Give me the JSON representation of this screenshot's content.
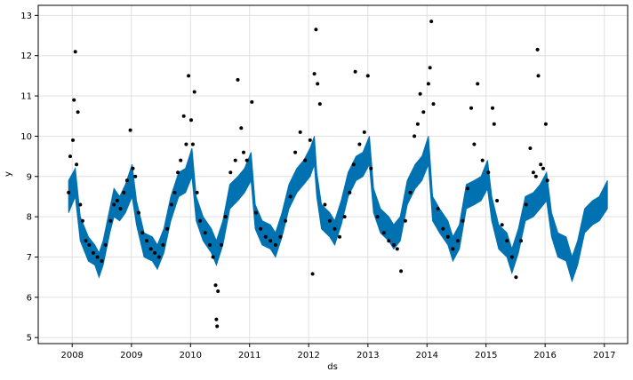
{
  "chart_data": {
    "type": "scatter",
    "title": "",
    "xlabel": "ds",
    "ylabel": "y",
    "xlim": [
      "2007-06-05",
      "2017-05-25"
    ],
    "ylim": [
      4.85,
      13.25
    ],
    "grid": true,
    "x_ticks": [
      {
        "date": "2008-01-01",
        "label": "2008"
      },
      {
        "date": "2009-01-01",
        "label": "2009"
      },
      {
        "date": "2010-01-01",
        "label": "2010"
      },
      {
        "date": "2011-01-01",
        "label": "2011"
      },
      {
        "date": "2012-01-01",
        "label": "2012"
      },
      {
        "date": "2013-01-01",
        "label": "2013"
      },
      {
        "date": "2014-01-01",
        "label": "2014"
      },
      {
        "date": "2015-01-01",
        "label": "2015"
      },
      {
        "date": "2016-01-01",
        "label": "2016"
      },
      {
        "date": "2017-01-01",
        "label": "2017"
      }
    ],
    "y_ticks": [
      5,
      6,
      7,
      8,
      9,
      10,
      11,
      12,
      13
    ],
    "colors": {
      "observed": "#000000",
      "forecast": "#0072B2",
      "grid": "#e0e0e0"
    },
    "series": [
      {
        "role": "observed",
        "points": [
          [
            "2007-12-10",
            8.6
          ],
          [
            "2007-12-20",
            9.5
          ],
          [
            "2008-01-05",
            9.9
          ],
          [
            "2008-01-12",
            10.9
          ],
          [
            "2008-01-20",
            12.1
          ],
          [
            "2008-01-28",
            9.3
          ],
          [
            "2008-02-05",
            10.6
          ],
          [
            "2008-02-20",
            8.3
          ],
          [
            "2008-03-05",
            7.9
          ],
          [
            "2008-03-25",
            7.4
          ],
          [
            "2008-04-15",
            7.3
          ],
          [
            "2008-05-10",
            7.1
          ],
          [
            "2008-06-05",
            7.0
          ],
          [
            "2008-07-01",
            6.9
          ],
          [
            "2008-07-25",
            7.3
          ],
          [
            "2008-08-25",
            7.9
          ],
          [
            "2008-09-15",
            8.3
          ],
          [
            "2008-10-05",
            8.4
          ],
          [
            "2008-10-25",
            8.2
          ],
          [
            "2008-11-15",
            8.6
          ],
          [
            "2008-12-05",
            8.9
          ],
          [
            "2008-12-25",
            10.15
          ],
          [
            "2009-01-10",
            9.2
          ],
          [
            "2009-01-25",
            9.0
          ],
          [
            "2009-02-15",
            8.1
          ],
          [
            "2009-03-10",
            7.6
          ],
          [
            "2009-04-05",
            7.4
          ],
          [
            "2009-05-01",
            7.2
          ],
          [
            "2009-05-25",
            7.1
          ],
          [
            "2009-06-20",
            7.0
          ],
          [
            "2009-07-15",
            7.3
          ],
          [
            "2009-08-10",
            7.7
          ],
          [
            "2009-09-05",
            8.3
          ],
          [
            "2009-09-25",
            8.6
          ],
          [
            "2009-10-15",
            9.1
          ],
          [
            "2009-11-01",
            9.4
          ],
          [
            "2009-11-20",
            10.5
          ],
          [
            "2009-12-05",
            9.8
          ],
          [
            "2009-12-20",
            11.5
          ],
          [
            "2010-01-05",
            10.4
          ],
          [
            "2010-01-15",
            9.8
          ],
          [
            "2010-01-25",
            11.1
          ],
          [
            "2010-02-10",
            8.6
          ],
          [
            "2010-03-01",
            7.9
          ],
          [
            "2010-04-01",
            7.6
          ],
          [
            "2010-05-01",
            7.3
          ],
          [
            "2010-05-20",
            7.0
          ],
          [
            "2010-06-05",
            6.3
          ],
          [
            "2010-06-10",
            5.45
          ],
          [
            "2010-06-14",
            5.28
          ],
          [
            "2010-06-20",
            6.15
          ],
          [
            "2010-07-10",
            7.3
          ],
          [
            "2010-08-05",
            8.0
          ],
          [
            "2010-09-05",
            9.1
          ],
          [
            "2010-10-05",
            9.4
          ],
          [
            "2010-10-20",
            11.4
          ],
          [
            "2010-11-10",
            10.2
          ],
          [
            "2010-11-25",
            9.6
          ],
          [
            "2010-12-15",
            9.4
          ],
          [
            "2011-01-15",
            10.85
          ],
          [
            "2011-02-10",
            8.1
          ],
          [
            "2011-03-10",
            7.7
          ],
          [
            "2011-04-10",
            7.5
          ],
          [
            "2011-05-10",
            7.4
          ],
          [
            "2011-06-10",
            7.3
          ],
          [
            "2011-07-10",
            7.5
          ],
          [
            "2011-08-10",
            7.9
          ],
          [
            "2011-09-10",
            8.5
          ],
          [
            "2011-10-10",
            9.6
          ],
          [
            "2011-11-10",
            10.1
          ],
          [
            "2011-12-10",
            9.4
          ],
          [
            "2012-01-10",
            9.9
          ],
          [
            "2012-01-25",
            6.58
          ],
          [
            "2012-02-05",
            11.55
          ],
          [
            "2012-02-15",
            12.65
          ],
          [
            "2012-02-25",
            11.3
          ],
          [
            "2012-03-10",
            10.8
          ],
          [
            "2012-04-10",
            8.3
          ],
          [
            "2012-05-10",
            7.9
          ],
          [
            "2012-06-10",
            7.7
          ],
          [
            "2012-07-10",
            7.5
          ],
          [
            "2012-08-10",
            8.0
          ],
          [
            "2012-09-10",
            8.6
          ],
          [
            "2012-10-05",
            9.3
          ],
          [
            "2012-10-15",
            11.6
          ],
          [
            "2012-11-10",
            9.8
          ],
          [
            "2012-12-10",
            10.1
          ],
          [
            "2013-01-01",
            11.5
          ],
          [
            "2013-01-20",
            9.2
          ],
          [
            "2013-03-01",
            8.0
          ],
          [
            "2013-04-10",
            7.6
          ],
          [
            "2013-05-10",
            7.4
          ],
          [
            "2013-06-10",
            7.3
          ],
          [
            "2013-07-01",
            7.2
          ],
          [
            "2013-07-25",
            6.65
          ],
          [
            "2013-08-20",
            7.9
          ],
          [
            "2013-09-20",
            8.6
          ],
          [
            "2013-10-15",
            10.0
          ],
          [
            "2013-11-05",
            10.3
          ],
          [
            "2013-11-20",
            11.05
          ],
          [
            "2013-12-10",
            10.6
          ],
          [
            "2014-01-10",
            11.3
          ],
          [
            "2014-01-20",
            11.7
          ],
          [
            "2014-01-28",
            12.85
          ],
          [
            "2014-02-10",
            10.8
          ],
          [
            "2014-03-10",
            8.2
          ],
          [
            "2014-04-10",
            7.7
          ],
          [
            "2014-05-10",
            7.5
          ],
          [
            "2014-06-10",
            7.2
          ],
          [
            "2014-07-10",
            7.4
          ],
          [
            "2014-08-10",
            7.9
          ],
          [
            "2014-09-10",
            8.7
          ],
          [
            "2014-10-01",
            10.7
          ],
          [
            "2014-10-20",
            9.8
          ],
          [
            "2014-11-10",
            11.3
          ],
          [
            "2014-12-10",
            9.4
          ],
          [
            "2015-01-15",
            9.1
          ],
          [
            "2015-02-10",
            10.7
          ],
          [
            "2015-02-20",
            10.3
          ],
          [
            "2015-03-10",
            8.4
          ],
          [
            "2015-04-10",
            7.8
          ],
          [
            "2015-05-10",
            7.4
          ],
          [
            "2015-06-10",
            7.0
          ],
          [
            "2015-07-05",
            6.5
          ],
          [
            "2015-08-05",
            7.4
          ],
          [
            "2015-09-05",
            8.3
          ],
          [
            "2015-10-01",
            9.7
          ],
          [
            "2015-10-20",
            9.1
          ],
          [
            "2015-11-05",
            9.0
          ],
          [
            "2015-11-15",
            12.15
          ],
          [
            "2015-11-20",
            11.5
          ],
          [
            "2015-12-05",
            9.3
          ],
          [
            "2015-12-20",
            9.2
          ],
          [
            "2016-01-05",
            10.3
          ],
          [
            "2016-01-15",
            8.9
          ]
        ]
      },
      {
        "role": "forecast",
        "type": "band",
        "points": [
          [
            "2007-12-10",
            8.1,
            8.9
          ],
          [
            "2008-01-20",
            8.5,
            9.2
          ],
          [
            "2008-02-20",
            7.4,
            8.0
          ],
          [
            "2008-04-10",
            6.9,
            7.5
          ],
          [
            "2008-05-20",
            6.8,
            7.3
          ],
          [
            "2008-06-15",
            6.5,
            7.1
          ],
          [
            "2008-07-10",
            6.8,
            7.4
          ],
          [
            "2008-08-20",
            7.6,
            8.2
          ],
          [
            "2008-09-15",
            8.0,
            8.7
          ],
          [
            "2008-10-20",
            7.9,
            8.5
          ],
          [
            "2008-11-25",
            8.1,
            8.8
          ],
          [
            "2009-01-05",
            8.5,
            9.3
          ],
          [
            "2009-02-01",
            7.8,
            8.4
          ],
          [
            "2009-03-20",
            7.0,
            7.6
          ],
          [
            "2009-05-10",
            6.9,
            7.5
          ],
          [
            "2009-06-10",
            6.7,
            7.3
          ],
          [
            "2009-07-20",
            7.1,
            7.7
          ],
          [
            "2009-09-01",
            7.9,
            8.5
          ],
          [
            "2009-10-20",
            8.5,
            9.1
          ],
          [
            "2009-12-01",
            8.6,
            9.2
          ],
          [
            "2010-01-10",
            9.0,
            9.7
          ],
          [
            "2010-02-05",
            7.9,
            8.5
          ],
          [
            "2010-03-20",
            7.4,
            8.0
          ],
          [
            "2010-05-10",
            7.1,
            7.7
          ],
          [
            "2010-06-10",
            6.8,
            7.4
          ],
          [
            "2010-07-20",
            7.3,
            7.9
          ],
          [
            "2010-09-01",
            8.2,
            8.8
          ],
          [
            "2010-10-20",
            8.4,
            9.0
          ],
          [
            "2010-12-01",
            8.6,
            9.2
          ],
          [
            "2011-01-10",
            8.9,
            9.6
          ],
          [
            "2011-02-05",
            7.7,
            8.3
          ],
          [
            "2011-03-20",
            7.3,
            7.9
          ],
          [
            "2011-05-10",
            7.2,
            7.8
          ],
          [
            "2011-06-10",
            7.0,
            7.6
          ],
          [
            "2011-07-20",
            7.5,
            8.1
          ],
          [
            "2011-09-01",
            8.2,
            8.8
          ],
          [
            "2011-10-20",
            8.6,
            9.2
          ],
          [
            "2011-12-01",
            8.8,
            9.4
          ],
          [
            "2012-01-10",
            9.0,
            9.7
          ],
          [
            "2012-02-05",
            9.3,
            10.0
          ],
          [
            "2012-02-20",
            8.5,
            9.1
          ],
          [
            "2012-03-20",
            7.7,
            8.3
          ],
          [
            "2012-05-10",
            7.5,
            8.1
          ],
          [
            "2012-06-10",
            7.3,
            7.9
          ],
          [
            "2012-07-20",
            7.8,
            8.4
          ],
          [
            "2012-09-01",
            8.5,
            9.1
          ],
          [
            "2012-10-20",
            8.9,
            9.5
          ],
          [
            "2012-12-01",
            9.0,
            9.6
          ],
          [
            "2013-01-10",
            9.3,
            10.0
          ],
          [
            "2013-02-05",
            8.1,
            8.7
          ],
          [
            "2013-03-20",
            7.6,
            8.2
          ],
          [
            "2013-05-10",
            7.4,
            8.0
          ],
          [
            "2013-06-10",
            7.2,
            7.8
          ],
          [
            "2013-07-20",
            7.4,
            8.0
          ],
          [
            "2013-09-01",
            8.3,
            8.9
          ],
          [
            "2013-10-20",
            8.7,
            9.3
          ],
          [
            "2013-12-01",
            8.9,
            9.5
          ],
          [
            "2014-01-10",
            9.3,
            10.0
          ],
          [
            "2014-02-05",
            7.9,
            8.5
          ],
          [
            "2014-03-20",
            7.6,
            8.2
          ],
          [
            "2014-05-10",
            7.3,
            7.9
          ],
          [
            "2014-06-10",
            6.9,
            7.5
          ],
          [
            "2014-07-20",
            7.2,
            7.8
          ],
          [
            "2014-09-01",
            8.2,
            8.8
          ],
          [
            "2014-10-20",
            8.3,
            8.9
          ],
          [
            "2014-12-01",
            8.4,
            9.0
          ],
          [
            "2015-01-10",
            8.7,
            9.4
          ],
          [
            "2015-02-05",
            7.9,
            8.5
          ],
          [
            "2015-03-20",
            7.2,
            7.8
          ],
          [
            "2015-05-10",
            7.0,
            7.6
          ],
          [
            "2015-06-10",
            6.6,
            7.2
          ],
          [
            "2015-07-20",
            7.1,
            7.7
          ],
          [
            "2015-09-01",
            7.9,
            8.5
          ],
          [
            "2015-10-20",
            8.0,
            8.6
          ],
          [
            "2015-12-01",
            8.2,
            8.8
          ],
          [
            "2016-01-10",
            8.4,
            9.1
          ],
          [
            "2016-02-10",
            7.5,
            8.1
          ],
          [
            "2016-03-20",
            7.0,
            7.6
          ],
          [
            "2016-05-10",
            6.9,
            7.5
          ],
          [
            "2016-06-15",
            6.4,
            7.0
          ],
          [
            "2016-07-20",
            6.8,
            7.4
          ],
          [
            "2016-09-01",
            7.6,
            8.2
          ],
          [
            "2016-10-20",
            7.8,
            8.4
          ],
          [
            "2016-12-01",
            7.9,
            8.5
          ],
          [
            "2017-01-20",
            8.2,
            8.9
          ]
        ]
      }
    ]
  }
}
